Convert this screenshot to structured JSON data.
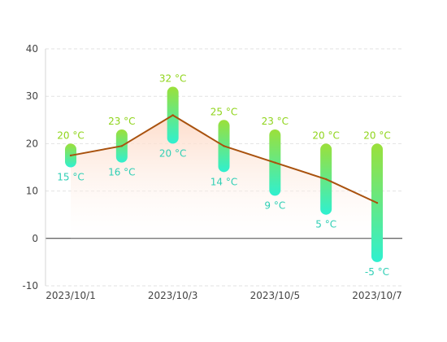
{
  "chart_data": {
    "type": "range-bar-line",
    "x": [
      "2023/10/1",
      "2023/10/2",
      "2023/10/3",
      "2023/10/4",
      "2023/10/5",
      "2023/10/6",
      "2023/10/7"
    ],
    "x_tick_labels_shown": [
      "2023/10/1",
      "",
      "2023/10/3",
      "",
      "2023/10/5",
      "",
      "2023/10/7"
    ],
    "series": [
      {
        "kind": "range",
        "high": [
          20,
          23,
          32,
          25,
          23,
          20,
          20
        ],
        "low": [
          15,
          16,
          20,
          14,
          9,
          5,
          -5
        ]
      },
      {
        "kind": "line",
        "values": [
          17.5,
          19.5,
          26,
          19.5,
          16,
          12.5,
          7.5
        ]
      }
    ],
    "high_labels": [
      "20 °C",
      "23 °C",
      "32 °C",
      "25 °C",
      "23 °C",
      "20 °C",
      "20 °C"
    ],
    "low_labels": [
      "15 °C",
      "16 °C",
      "20 °C",
      "14 °C",
      "9 °C",
      "5 °C",
      "-5 °C"
    ],
    "y_ticks": [
      "-10",
      "0",
      "10",
      "20",
      "30",
      "40"
    ],
    "ylim": [
      -10,
      40
    ],
    "grid": true,
    "colors": {
      "bar_top": "#9be03a",
      "bar_bottom": "#2ff0d0",
      "line": "#a9520e",
      "area_top": "#fdd8c4",
      "high_label": "#8fd41a",
      "low_label": "#2fcfb5",
      "grid": "#e2e2e2",
      "zero_axis": "#333333"
    }
  }
}
